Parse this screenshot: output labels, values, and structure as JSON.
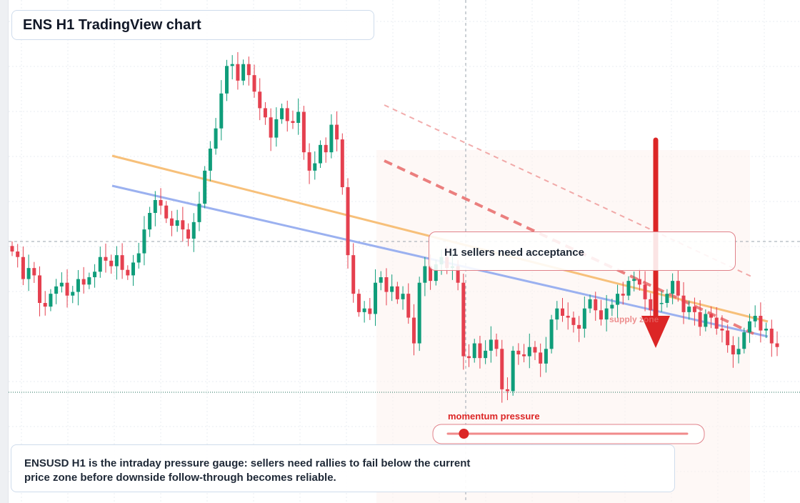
{
  "title": "ENS H1 TradingView chart",
  "callout": {
    "text": "H1 sellers need acceptance"
  },
  "gauge": {
    "label": "momentum pressure",
    "level": 0.04,
    "color": "#dc2626"
  },
  "supply_label": "supply zone",
  "note": {
    "text": "ENSUSD H1 is the intraday pressure gauge: sellers need rallies to fail below the current price zone before downside follow-through becomes reliable."
  },
  "colors": {
    "up": "#0f9d7a",
    "down": "#e5404f",
    "orange_trend": "#f7c07a",
    "blue_trend": "#9bb1f0",
    "resistance": "#e86a6a",
    "arrow": "#dc2626"
  },
  "chart_data": {
    "type": "candlestick",
    "symbol": "ENSUSD",
    "timeframe": "H1",
    "price_range": [
      10,
      31
    ],
    "close": [
      19.8,
      19.5,
      18.3,
      18.9,
      18.5,
      17.0,
      16.8,
      17.5,
      17.9,
      18.1,
      17.4,
      17.6,
      18.3,
      18.0,
      18.4,
      18.7,
      19.5,
      19.3,
      19.0,
      19.6,
      18.8,
      18.5,
      19.2,
      19.7,
      21.0,
      21.9,
      22.6,
      22.3,
      21.6,
      21.2,
      21.5,
      21.0,
      20.5,
      21.4,
      22.4,
      24.2,
      25.4,
      26.5,
      28.4,
      29.9,
      30.0,
      29.1,
      30.0,
      29.4,
      28.5,
      27.6,
      27.1,
      26.0,
      27.0,
      27.6,
      26.9,
      26.8,
      27.4,
      25.2,
      24.2,
      24.6,
      25.6,
      25.2,
      26.7,
      25.9,
      23.3,
      19.6,
      17.5,
      16.5,
      16.7,
      16.4,
      18.1,
      18.4,
      17.6,
      17.9,
      17.2,
      17.5,
      16.2,
      14.8,
      18.1,
      19.0,
      18.2,
      19.1,
      19.5,
      18.9,
      19.0,
      18.1,
      14.1,
      14.0,
      14.8,
      14.0,
      14.4,
      15.0,
      14.5,
      12.3,
      12.2,
      14.4,
      14.2,
      14.1,
      14.6,
      14.3,
      13.7,
      14.5,
      16.1,
      16.7,
      16.3,
      16.2,
      15.8,
      15.6,
      16.7,
      17.2,
      16.6,
      16.1,
      16.7,
      16.9,
      17.5,
      17.4,
      18.2,
      18.3,
      18.0,
      17.2,
      16.6,
      17.0,
      17.0,
      17.5,
      18.2,
      17.4,
      16.5,
      16.8,
      16.5,
      15.7,
      16.4,
      16.2,
      15.6,
      15.5,
      14.7,
      14.2,
      14.5,
      15.4,
      16.0,
      16.3,
      15.5,
      15.6,
      14.8,
      14.6
    ]
  }
}
